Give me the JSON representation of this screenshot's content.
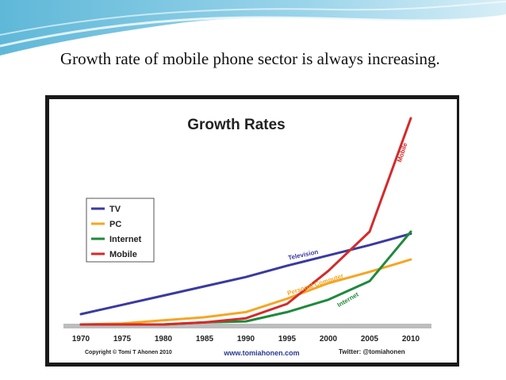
{
  "slide": {
    "title": "Growth rate of mobile phone sector is always increasing."
  },
  "chart_data": {
    "type": "line",
    "title": "Growth Rates",
    "x": [
      1970,
      1975,
      1980,
      1985,
      1990,
      1995,
      2000,
      2005,
      2010
    ],
    "ylim": [
      0,
      100
    ],
    "grid": false,
    "legend_position": "left",
    "series": [
      {
        "name": "TV",
        "label": "Television",
        "color": "#3a3aa0",
        "values": [
          5.0,
          9.5,
          14.0,
          18.5,
          23.0,
          28.5,
          33.5,
          38.5,
          44.0
        ]
      },
      {
        "name": "PC",
        "label": "Personal Computer",
        "color": "#f5a623",
        "values": [
          0.0,
          0.5,
          2.0,
          3.5,
          6.0,
          12.5,
          20.0,
          25.5,
          31.5
        ]
      },
      {
        "name": "Internet",
        "label": "Internet",
        "color": "#1e8a3c",
        "values": [
          0.0,
          0.0,
          0.0,
          1.0,
          1.5,
          6.0,
          12.0,
          21.0,
          45.0
        ]
      },
      {
        "name": "Mobile",
        "label": "Mobile",
        "color": "#d42a2a",
        "values": [
          0.0,
          0.0,
          0.0,
          1.0,
          3.0,
          10.0,
          26.0,
          45.0,
          100.0
        ]
      }
    ],
    "footer": {
      "copyright": "Copyright © Tomi T Ahonen 2010",
      "website": "www.tomiahonen.com",
      "twitter": "Twitter: @tomiahonen"
    }
  }
}
